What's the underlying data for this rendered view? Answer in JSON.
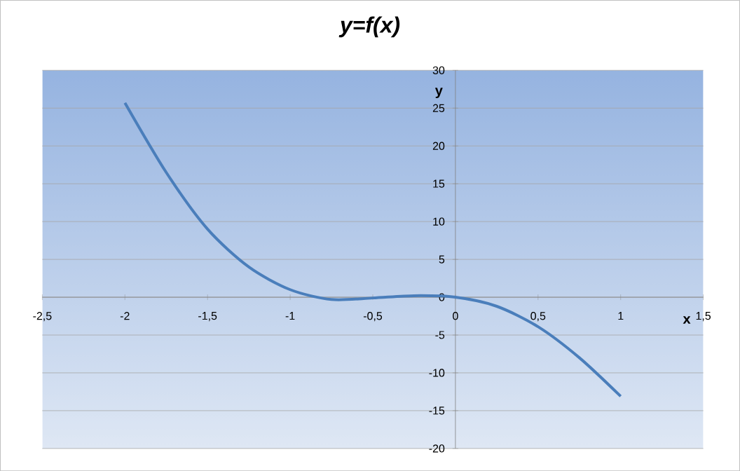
{
  "chart_data": {
    "type": "line",
    "title": "y=f(x)",
    "xlabel": "x",
    "ylabel": "y",
    "series": [
      {
        "color": "#4a7ebb",
        "x": [
          -2,
          -1.75,
          -1.5,
          -1.25,
          -1,
          -0.75,
          -0.5,
          -0.25,
          0,
          0.25,
          0.5,
          0.75,
          1
        ],
        "values": [
          25.7,
          16.5,
          9,
          4,
          1,
          -0.3,
          -0.1,
          0.2,
          0,
          -1.2,
          -3.9,
          -8,
          -13.1
        ]
      }
    ],
    "xlim": [
      -2.5,
      1.5
    ],
    "ylim": [
      -20,
      30
    ],
    "xticks": [
      {
        "value": -2.5,
        "label": "-2,5"
      },
      -2,
      {
        "value": -1.5,
        "label": "-1,5"
      },
      -1,
      {
        "value": -0.5,
        "label": "-0,5"
      },
      0,
      {
        "value": 0.5,
        "label": "0,5"
      },
      1,
      {
        "value": 1.5,
        "label": "1,5"
      }
    ],
    "yticks": [
      -20,
      -15,
      -10,
      -5,
      0,
      5,
      10,
      15,
      20,
      25,
      30
    ],
    "grid": "y",
    "marker": "none",
    "line_style": "solid"
  }
}
